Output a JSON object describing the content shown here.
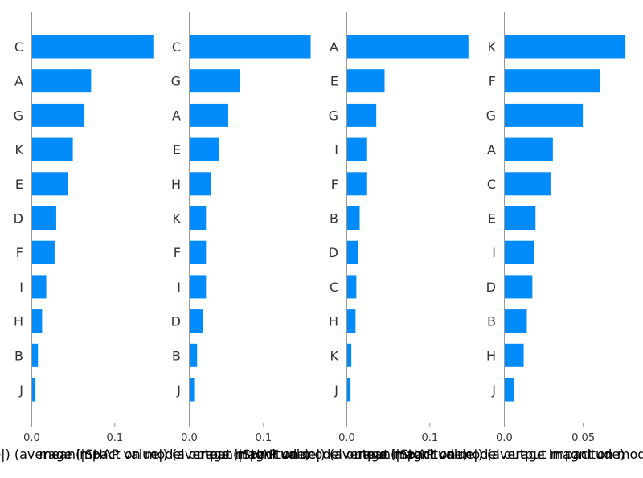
{
  "colors": {
    "bar": "#008bfb",
    "axis": "#999999",
    "text": "#333333"
  },
  "chart_data": [
    {
      "type": "bar",
      "orientation": "horizontal",
      "categories": [
        "C",
        "A",
        "G",
        "K",
        "E",
        "D",
        "F",
        "I",
        "H",
        "B",
        "J"
      ],
      "values": [
        0.146,
        0.071,
        0.063,
        0.049,
        0.043,
        0.029,
        0.027,
        0.017,
        0.012,
        0.007,
        0.004
      ],
      "xlim": [
        0,
        0.152
      ],
      "xticks": [
        0.0,
        0.1
      ],
      "xtick_labels": [
        "0.0",
        "0.1"
      ],
      "xlabel": "mean(|SHAP value|) (average impact on model output magnitude)"
    },
    {
      "type": "bar",
      "orientation": "horizontal",
      "categories": [
        "C",
        "G",
        "A",
        "E",
        "H",
        "K",
        "F",
        "I",
        "D",
        "B",
        "J"
      ],
      "values": [
        0.163,
        0.068,
        0.052,
        0.04,
        0.029,
        0.022,
        0.022,
        0.022,
        0.018,
        0.01,
        0.006
      ],
      "xlim": [
        0,
        0.17
      ],
      "xticks": [
        0.0,
        0.1
      ],
      "xtick_labels": [
        "0.0",
        "0.1"
      ],
      "xlabel": "mean(|SHAP value|) (average impact on model output magnitude)"
    },
    {
      "type": "bar",
      "orientation": "horizontal",
      "categories": [
        "A",
        "E",
        "G",
        "I",
        "F",
        "B",
        "D",
        "C",
        "H",
        "K",
        "J"
      ],
      "values": [
        0.146,
        0.045,
        0.035,
        0.023,
        0.023,
        0.015,
        0.013,
        0.011,
        0.01,
        0.005,
        0.004
      ],
      "xlim": [
        0,
        0.152
      ],
      "xticks": [
        0.0,
        0.1
      ],
      "xtick_labels": [
        "0.0",
        "0.1"
      ],
      "xlabel": "mean(|SHAP value|) (average impact on model output magnitude)"
    },
    {
      "type": "bar",
      "orientation": "horizontal",
      "categories": [
        "K",
        "F",
        "G",
        "A",
        "C",
        "E",
        "I",
        "D",
        "B",
        "H",
        "J"
      ],
      "values": [
        0.0765,
        0.0605,
        0.0495,
        0.0305,
        0.029,
        0.0195,
        0.0185,
        0.0175,
        0.014,
        0.012,
        0.006
      ],
      "xlim": [
        0,
        0.08
      ],
      "xticks": [
        0.0,
        0.05
      ],
      "xtick_labels": [
        "0.0",
        "0.05"
      ],
      "xlabel": "mean(|SHAP value|) (average impact on model output magnitude)"
    }
  ]
}
